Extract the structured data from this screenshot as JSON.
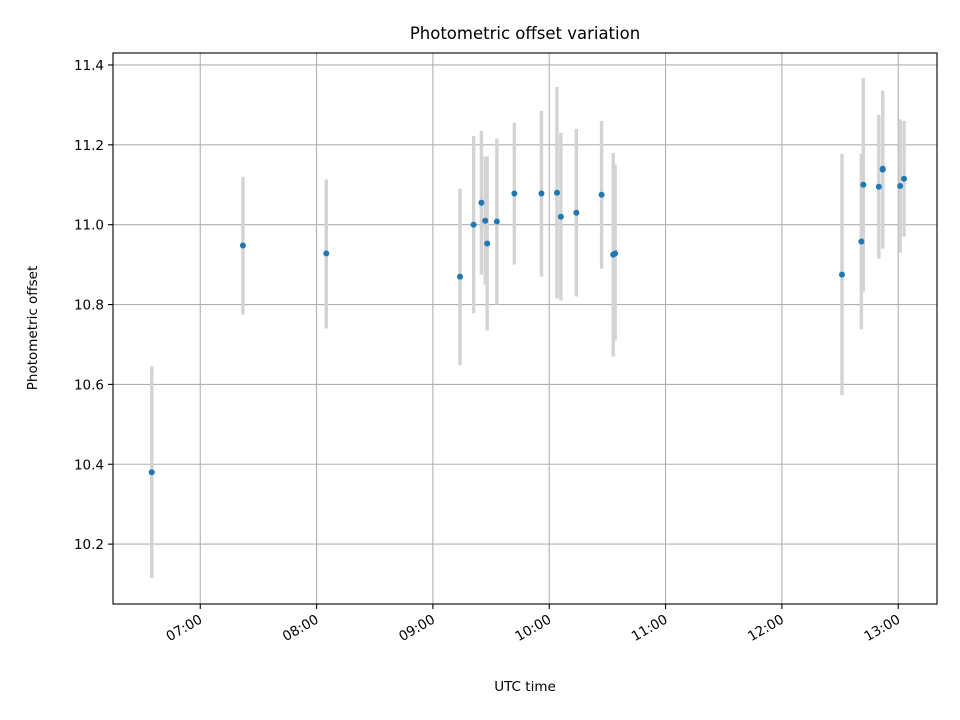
{
  "chart_data": {
    "type": "scatter",
    "title": "Photometric offset variation",
    "xlabel": "UTC time",
    "ylabel": "Photometric offset",
    "xlim": [
      "06:15",
      "13:20"
    ],
    "ylim": [
      10.05,
      11.43
    ],
    "grid": true,
    "x_ticks": [
      "07:00",
      "08:00",
      "09:00",
      "10:00",
      "11:00",
      "12:00",
      "13:00"
    ],
    "y_ticks": [
      10.2,
      10.4,
      10.6,
      10.8,
      11.0,
      11.2,
      11.4
    ],
    "colors": {
      "point": "#1f77b4",
      "errorbar": "#d3d3d3",
      "grid": "#b0b0b0"
    },
    "points": [
      {
        "x": "06:35",
        "y": 10.38,
        "ylow": 10.115,
        "yhigh": 10.645
      },
      {
        "x": "07:22",
        "y": 10.948,
        "ylow": 10.775,
        "yhigh": 11.12
      },
      {
        "x": "08:05",
        "y": 10.928,
        "ylow": 10.74,
        "yhigh": 11.113
      },
      {
        "x": "09:14",
        "y": 10.87,
        "ylow": 10.648,
        "yhigh": 11.09
      },
      {
        "x": "09:21",
        "y": 11.0,
        "ylow": 10.778,
        "yhigh": 11.222
      },
      {
        "x": "09:25",
        "y": 11.055,
        "ylow": 10.875,
        "yhigh": 11.235
      },
      {
        "x": "09:27",
        "y": 11.01,
        "ylow": 10.85,
        "yhigh": 11.17
      },
      {
        "x": "09:28",
        "y": 10.953,
        "ylow": 10.735,
        "yhigh": 11.171
      },
      {
        "x": "09:33",
        "y": 11.008,
        "ylow": 10.8,
        "yhigh": 11.216
      },
      {
        "x": "09:42",
        "y": 11.078,
        "ylow": 10.9,
        "yhigh": 11.256
      },
      {
        "x": "09:56",
        "y": 11.078,
        "ylow": 10.87,
        "yhigh": 11.285
      },
      {
        "x": "10:04",
        "y": 11.08,
        "ylow": 10.815,
        "yhigh": 11.345
      },
      {
        "x": "10:06",
        "y": 11.02,
        "ylow": 10.81,
        "yhigh": 11.23
      },
      {
        "x": "10:14",
        "y": 11.03,
        "ylow": 10.82,
        "yhigh": 11.24
      },
      {
        "x": "10:27",
        "y": 11.075,
        "ylow": 10.89,
        "yhigh": 11.26
      },
      {
        "x": "10:33",
        "y": 10.925,
        "ylow": 10.67,
        "yhigh": 11.18
      },
      {
        "x": "10:34",
        "y": 10.928,
        "ylow": 10.71,
        "yhigh": 11.15
      },
      {
        "x": "12:31",
        "y": 10.875,
        "ylow": 10.573,
        "yhigh": 11.177
      },
      {
        "x": "12:41",
        "y": 10.958,
        "ylow": 10.738,
        "yhigh": 11.178
      },
      {
        "x": "12:42",
        "y": 11.1,
        "ylow": 10.833,
        "yhigh": 11.367
      },
      {
        "x": "12:50",
        "y": 11.095,
        "ylow": 10.915,
        "yhigh": 11.275
      },
      {
        "x": "12:52",
        "y": 11.138,
        "ylow": 10.94,
        "yhigh": 11.336
      },
      {
        "x": "12:52",
        "y": 11.14,
        "ylow": 10.95,
        "yhigh": 11.33
      },
      {
        "x": "13:01",
        "y": 11.097,
        "ylow": 10.93,
        "yhigh": 11.264
      },
      {
        "x": "13:03",
        "y": 11.115,
        "ylow": 10.97,
        "yhigh": 11.26
      }
    ]
  }
}
